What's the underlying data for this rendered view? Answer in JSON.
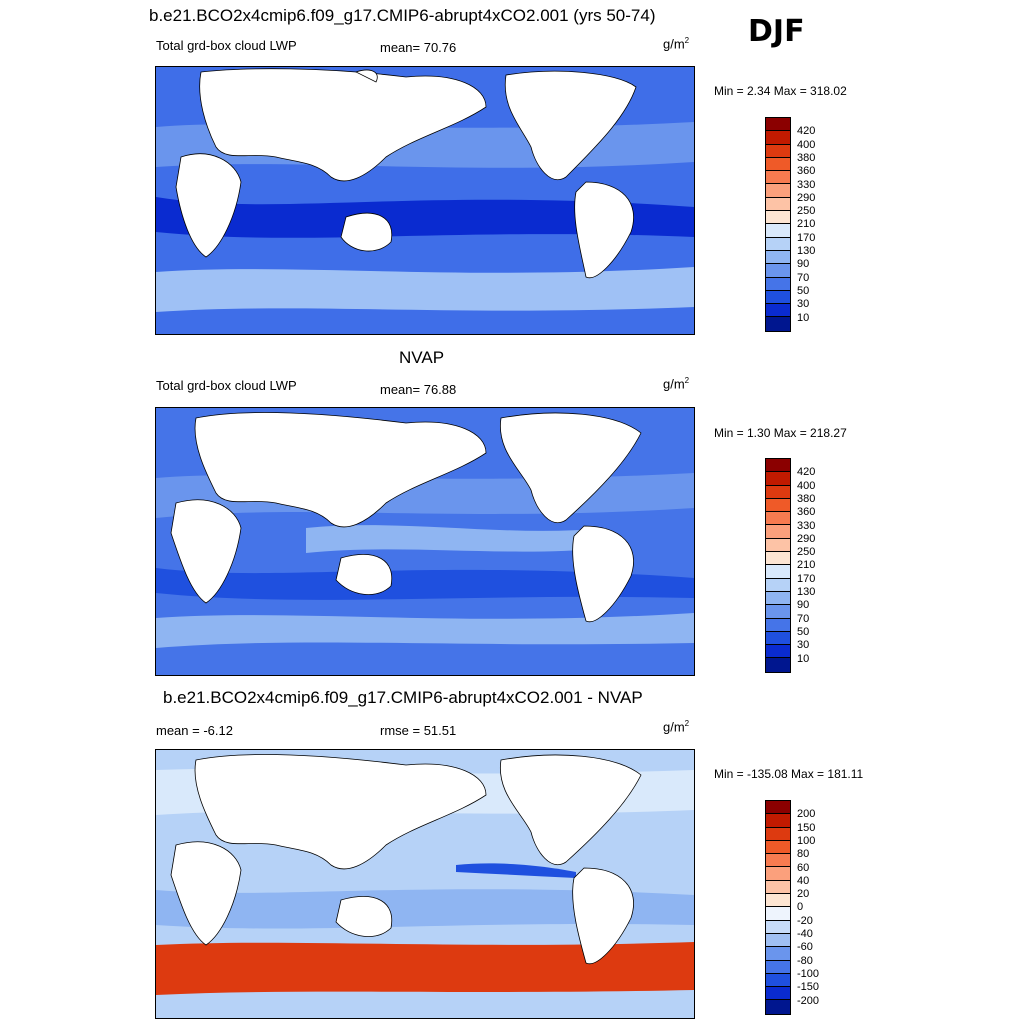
{
  "season": "DJF",
  "panels": [
    {
      "title": "b.e21.BCO2x4cmip6.f09_g17.CMIP6-abrupt4xCO2.001 (yrs 50-74)",
      "left_label": "Total grd-box cloud LWP",
      "center_label": "mean=  70.76",
      "units_base": "g/m",
      "units_exp": "2",
      "minmax": "Min =   2.34 Max = 318.02",
      "colorbar_labels": [
        "420",
        "400",
        "380",
        "360",
        "330",
        "290",
        "250",
        "210",
        "170",
        "130",
        "90",
        "70",
        "50",
        "30",
        "10"
      ],
      "colorbar_colors": [
        "#8b0000",
        "#c11a00",
        "#dd3a10",
        "#ef5a28",
        "#f77b50",
        "#fba07c",
        "#fdc3a6",
        "#fde5d2",
        "#d9e9fb",
        "#b6d2f7",
        "#8fb5f2",
        "#6a95ed",
        "#4574e8",
        "#1f50df",
        "#0a2bd0",
        "#00168f"
      ],
      "map_colors": {
        "ocean": "#3f6ee8",
        "band_light": "#9fc1f5",
        "band_mid": "#6a95ed",
        "band_dark": "#0a2bd0"
      }
    },
    {
      "title": "NVAP",
      "left_label": "Total grd-box cloud LWP",
      "center_label": "mean=  76.88",
      "units_base": "g/m",
      "units_exp": "2",
      "minmax": "Min =   1.30 Max = 218.27",
      "colorbar_labels": [
        "420",
        "400",
        "380",
        "360",
        "330",
        "290",
        "250",
        "210",
        "170",
        "130",
        "90",
        "70",
        "50",
        "30",
        "10"
      ],
      "colorbar_colors": [
        "#8b0000",
        "#c11a00",
        "#dd3a10",
        "#ef5a28",
        "#f77b50",
        "#fba07c",
        "#fdc3a6",
        "#fde5d2",
        "#d9e9fb",
        "#b6d2f7",
        "#8fb5f2",
        "#6a95ed",
        "#4574e8",
        "#1f50df",
        "#0a2bd0",
        "#00168f"
      ],
      "map_colors": {
        "ocean": "#4574e8",
        "band_light": "#8fb5f2",
        "band_mid": "#6a95ed",
        "band_dark": "#1f50df"
      }
    },
    {
      "title": "b.e21.BCO2x4cmip6.f09_g17.CMIP6-abrupt4xCO2.001 - NVAP",
      "left_label": "mean =  -6.12",
      "center_label": "rmse =  51.51",
      "units_base": "g/m",
      "units_exp": "2",
      "minmax": "Min = -135.08 Max = 181.11",
      "colorbar_labels": [
        "200",
        "150",
        "100",
        "80",
        "60",
        "40",
        "20",
        "0",
        "-20",
        "-40",
        "-60",
        "-80",
        "-100",
        "-150",
        "-200"
      ],
      "colorbar_colors": [
        "#8b0000",
        "#c11a00",
        "#dd3a10",
        "#ef5a28",
        "#f77b50",
        "#fba07c",
        "#fdc3a6",
        "#fde5d2",
        "#eef4fd",
        "#c7dcf9",
        "#a0c0f3",
        "#6a95ed",
        "#4574e8",
        "#1f50df",
        "#0a2bd0",
        "#00168f"
      ],
      "map_colors": {
        "ocean": "#b6d2f7",
        "band_light": "#d9e9fb",
        "band_mid": "#8fb5f2",
        "band_dark": "#dd3a10"
      }
    }
  ]
}
